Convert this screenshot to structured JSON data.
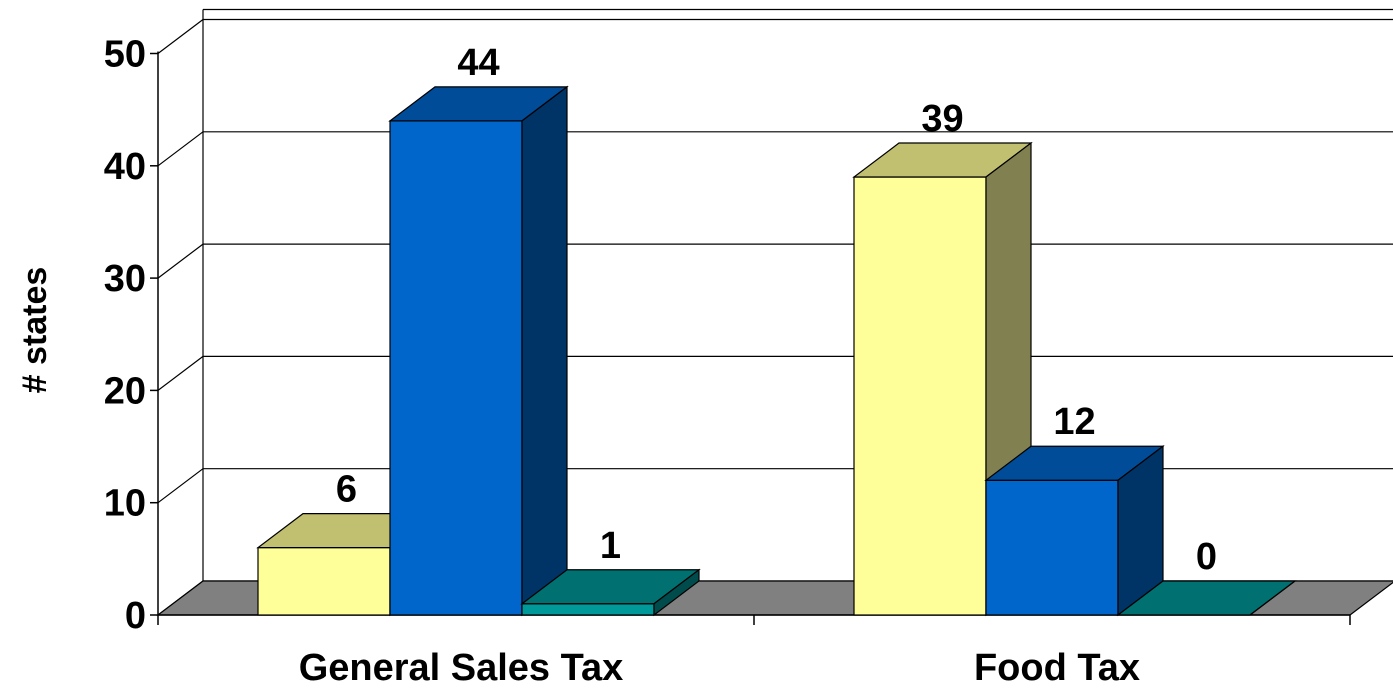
{
  "chart_data": {
    "type": "bar",
    "title": "",
    "xlabel": "",
    "ylabel": "# states",
    "ylim": [
      0,
      50
    ],
    "yticks": [
      "0",
      "10",
      "20",
      "30",
      "40",
      "50"
    ],
    "categories": [
      "General Sales Tax",
      "Food Tax"
    ],
    "series": [
      {
        "values": [
          6,
          39
        ],
        "color": "#FFFF99",
        "top_color": "#C0C070",
        "side_color": "#808050"
      },
      {
        "values": [
          44,
          12
        ],
        "color": "#0066CC",
        "top_color": "#004C99",
        "side_color": "#003366"
      },
      {
        "values": [
          1,
          0
        ],
        "color": "#009999",
        "top_color": "#007070",
        "side_color": "#004C4C"
      }
    ],
    "data_labels": [
      [
        "6",
        "39"
      ],
      [
        "44",
        "12"
      ],
      [
        "1",
        "0"
      ]
    ],
    "grid": true,
    "style": "3d-column"
  }
}
